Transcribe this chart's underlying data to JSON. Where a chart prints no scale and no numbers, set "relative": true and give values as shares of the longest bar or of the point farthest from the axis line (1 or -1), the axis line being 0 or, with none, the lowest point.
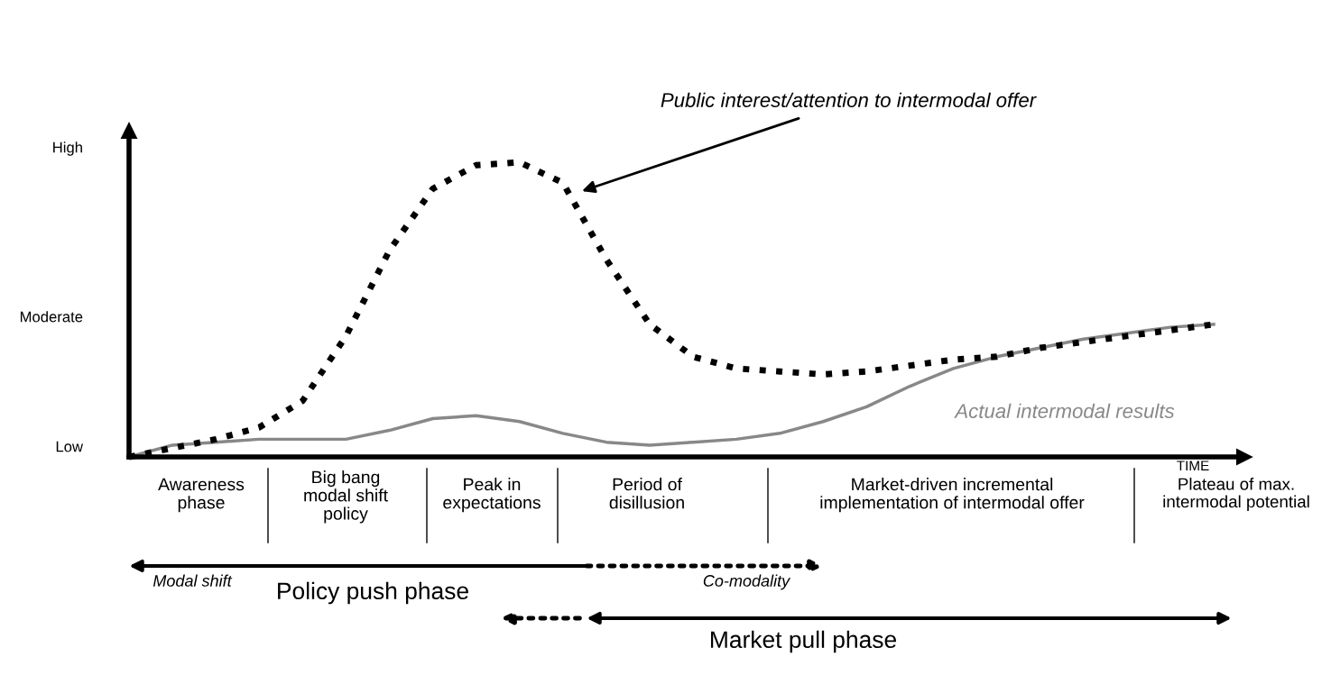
{
  "chart_data": {
    "type": "line",
    "xlabel": "TIME",
    "relative": true,
    "categories": [
      null,
      null,
      null,
      null,
      null,
      null,
      null,
      null,
      null,
      null,
      null,
      null,
      null,
      null,
      null,
      null,
      null,
      null,
      null,
      null,
      null,
      null,
      null,
      null,
      null,
      null
    ],
    "tick_labels": false,
    "grid": false,
    "legend": false,
    "series": [
      {
        "name": "Public interest/attention to intermodal offer",
        "color": "#000000",
        "line_style": "dotted",
        "values": [
          0,
          0.03,
          0.06,
          0.1,
          0.19,
          0.41,
          0.7,
          0.91,
          0.99,
          1,
          0.93,
          0.67,
          0.45,
          0.34,
          0.3,
          0.29,
          0.28,
          0.29,
          0.31,
          0.33,
          0.34,
          0.37,
          0.39,
          0.41,
          0.43,
          0.45
        ]
      },
      {
        "name": "Actual intermodal results",
        "color": "#888888",
        "line_style": "solid",
        "values": [
          0,
          0.04,
          0.05,
          0.06,
          0.06,
          0.06,
          0.09,
          0.13,
          0.14,
          0.12,
          0.08,
          0.05,
          0.04,
          0.05,
          0.06,
          0.08,
          0.12,
          0.17,
          0.24,
          0.3,
          0.34,
          0.37,
          0.4,
          0.42,
          0.44,
          0.45
        ]
      }
    ],
    "annotations": [
      "High",
      "Moderate",
      "Low",
      "Awareness\nphase",
      "Big bang\nmodal shift\npolicy",
      "Peak in\nexpectations",
      "Period of\ndisillusion",
      "Market-driven incremental\nimplementation of intermodal offer",
      "Plateau of max.\nintermodal potential",
      "Modal shift",
      "Policy push phase",
      "Co-modality",
      "Market pull phase"
    ]
  }
}
